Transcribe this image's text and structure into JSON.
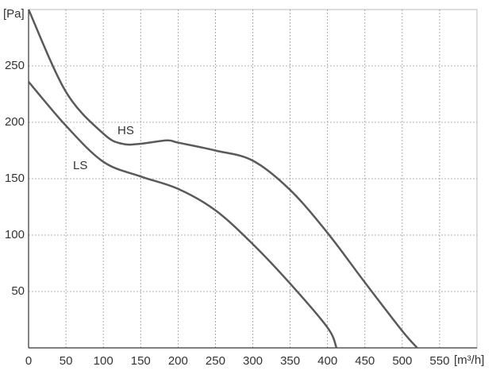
{
  "chart_data": {
    "type": "line",
    "y_label": "[Pa]",
    "x_label": "[m³/h]",
    "xlim": [
      0,
      600
    ],
    "ylim": [
      0,
      300
    ],
    "xticks": [
      0,
      50,
      100,
      150,
      200,
      250,
      300,
      350,
      400,
      450,
      500,
      550
    ],
    "yticks": [
      50,
      100,
      150,
      200,
      250
    ],
    "grid": true,
    "series": [
      {
        "name": "HS",
        "color": "#5a5a5a",
        "x": [
          0,
          50,
          100,
          125,
          150,
          185,
          200,
          250,
          300,
          350,
          400,
          450,
          500,
          520
        ],
        "values": [
          300,
          227,
          190,
          181,
          181,
          184,
          182,
          175,
          166,
          140,
          102,
          58,
          15,
          0
        ]
      },
      {
        "name": "LS",
        "color": "#5a5a5a",
        "x": [
          0,
          50,
          100,
          150,
          200,
          250,
          300,
          350,
          400,
          412
        ],
        "values": [
          236,
          197,
          165,
          152,
          141,
          122,
          92,
          57,
          18,
          0
        ]
      }
    ]
  }
}
